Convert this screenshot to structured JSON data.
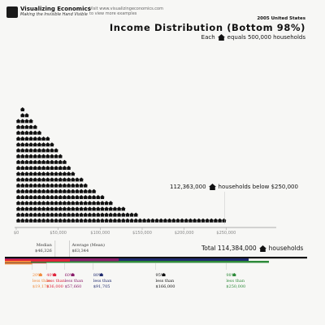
{
  "brand": {
    "name": "Visualizing Economics",
    "tagline": "Making the Invisible Hand Visible",
    "visit_line1": "Visit www.visualizingeconomics.com",
    "visit_line2": "to view more examples"
  },
  "header": {
    "year": "2005 United States",
    "title": "Income Distribution (Bottom 98%)",
    "legend_prefix": "Each",
    "legend_suffix": "equals 500,000 households"
  },
  "annotation": {
    "count": "112,363,000",
    "text": "households below $250,000"
  },
  "total": {
    "label": "Total 114,384,000",
    "suffix": "households"
  },
  "colors": {
    "icon": "#111111",
    "p20": "#f08a3c",
    "p40": "#e0243c",
    "p60": "#8a1c6a",
    "p80": "#1f2a6e",
    "p95": "#111111",
    "p98": "#2e8b3a"
  },
  "chart_data": {
    "type": "bar",
    "unit_note": "Each house icon = 500,000 households; bins of $5,000 household income",
    "x_axis": {
      "ticks": [
        "$0",
        "$50,000",
        "$100,000",
        "$150,000",
        "$200,000",
        "$250,000"
      ],
      "range": [
        0,
        250000
      ]
    },
    "bin_width": 5000,
    "icons_per_bin": [
      18,
      20,
      19,
      18,
      17,
      16,
      15,
      15,
      14,
      13,
      12,
      11,
      10,
      9,
      8,
      8,
      7,
      6,
      6,
      5,
      5,
      4,
      4,
      3,
      3,
      3,
      2,
      2,
      2,
      1,
      1,
      1,
      1,
      1,
      1,
      1,
      1,
      1,
      1,
      1,
      1,
      1,
      1,
      1,
      1,
      1,
      1,
      1,
      1,
      1
    ],
    "median": {
      "label": "Median",
      "value": "$46,326",
      "amount": 46326
    },
    "mean": {
      "label": "Average (Mean)",
      "value": "$63,344",
      "amount": 63344
    },
    "percentiles": [
      {
        "pct": "20%",
        "less": "less than",
        "value": "$19,178",
        "amount": 19178,
        "color": "#f08a3c"
      },
      {
        "pct": "40%",
        "less": "less than",
        "value": "$36,000",
        "amount": 36000,
        "color": "#e0243c"
      },
      {
        "pct": "60%",
        "less": "less than",
        "value": "$57,660",
        "amount": 57660,
        "color": "#8a1c6a"
      },
      {
        "pct": "80%",
        "less": "less than",
        "value": "$91,705",
        "amount": 91705,
        "color": "#1f2a6e"
      },
      {
        "pct": "95%",
        "less": "less than",
        "value": "$166,000",
        "amount": 166000,
        "color": "#111111"
      },
      {
        "pct": "98%",
        "less": "less than",
        "value": "$250,000",
        "amount": 250000,
        "color": "#2e8b3a"
      }
    ]
  }
}
